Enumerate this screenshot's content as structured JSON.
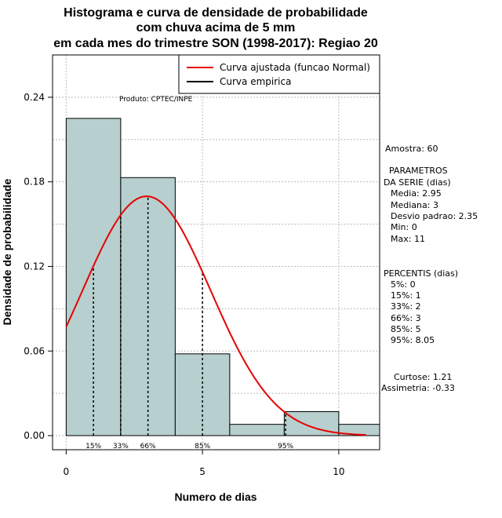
{
  "chart_data": {
    "type": "bar",
    "title_lines": [
      "Histograma e curva de densidade de probabilidade",
      "com chuva acima de 5 mm",
      "em cada mes do trimestre SON (1998-2017): Regiao 20"
    ],
    "xlabel": "Numero de dias",
    "ylabel": "Densidade de probabilidade",
    "xlim": [
      -0.5,
      11.5
    ],
    "ylim": [
      -0.01,
      0.27
    ],
    "xticks": [
      0,
      5,
      10
    ],
    "xtick_labels": [
      "0",
      "5",
      "10"
    ],
    "yticks": [
      0.0,
      0.06,
      0.12,
      0.18,
      0.24
    ],
    "ytick_labels": [
      "0.00",
      "0.06",
      "0.12",
      "0.18",
      "0.24"
    ],
    "grid": true,
    "bar_color": "#b7cfce",
    "curve_color": "#e60000",
    "bins": [
      {
        "x0": 0,
        "x1": 2,
        "density": 0.225
      },
      {
        "x0": 2,
        "x1": 4,
        "density": 0.183
      },
      {
        "x0": 4,
        "x1": 6,
        "density": 0.058
      },
      {
        "x0": 6,
        "x1": 8,
        "density": 0.008
      },
      {
        "x0": 8,
        "x1": 10,
        "density": 0.017
      },
      {
        "x0": 10,
        "x1": 12,
        "density": 0.008
      }
    ],
    "normal_fit": {
      "mean": 2.95,
      "sd": 2.35,
      "x_from": 0,
      "x_to": 11
    },
    "percentile_markers": [
      {
        "label": "15%",
        "x": 1
      },
      {
        "label": "33%",
        "x": 2
      },
      {
        "label": "66%",
        "x": 3
      },
      {
        "label": "85%",
        "x": 5
      },
      {
        "label": "95%",
        "x": 8.05
      }
    ],
    "legend": {
      "placement": "top-right",
      "entries": [
        {
          "label": "Curva ajustada (funcao Normal)",
          "color": "#e60000"
        },
        {
          "label": "Curva empirica",
          "color": "#000000"
        }
      ]
    },
    "annotations": {
      "produto": "Produto: CPTEC/INPE",
      "amostra": "Amostra: 60",
      "parametros_title_1": "PARAMETROS",
      "parametros_title_2": "DA SERIE (dias)",
      "media": "Media: 2.95",
      "mediana": "Mediana: 3",
      "desvio": "Desvio padrao: 2.35",
      "min": "Min: 0",
      "max": "Max: 11",
      "percentis_title": "PERCENTIS (dias)",
      "p5": "5%: 0",
      "p15": "15%: 1",
      "p33": "33%: 2",
      "p66": "66%: 3",
      "p85": "85%: 5",
      "p95": "95%: 8.05",
      "curtose": "Curtose: 1.21",
      "assimetria": "Assimetria: -0.33"
    }
  }
}
